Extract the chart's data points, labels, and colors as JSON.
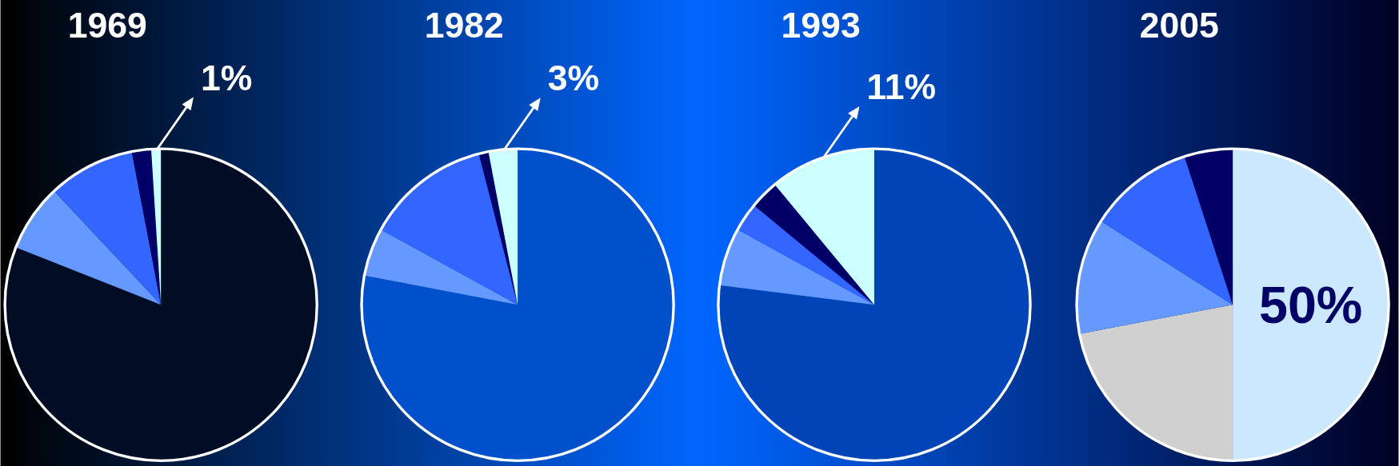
{
  "chart_data": [
    {
      "type": "pie",
      "title": "1969",
      "categories": [
        null,
        null,
        null,
        null,
        null
      ],
      "values": [
        81,
        7,
        9,
        2,
        1
      ],
      "colors": [
        "#000d24",
        "#6699ff",
        "#3366ff",
        "#000066",
        "#ccffff"
      ],
      "value_labels": [
        null,
        null,
        null,
        null,
        "1%"
      ]
    },
    {
      "type": "pie",
      "title": "1982",
      "categories": [
        null,
        null,
        null,
        null,
        null
      ],
      "values": [
        78,
        5,
        13,
        1,
        3
      ],
      "colors": [
        "#0050cc",
        "#6699ff",
        "#3366ff",
        "#000066",
        "#ccffff"
      ],
      "value_labels": [
        null,
        null,
        null,
        null,
        "3%"
      ]
    },
    {
      "type": "pie",
      "title": "1993",
      "categories": [
        null,
        null,
        null,
        null,
        null
      ],
      "values": [
        77,
        6,
        3,
        3,
        11
      ],
      "colors": [
        "#0044b8",
        "#6699ff",
        "#3366ff",
        "#000066",
        "#ccffff"
      ],
      "value_labels": [
        null,
        null,
        null,
        null,
        "11%"
      ]
    },
    {
      "type": "pie",
      "title": "2005",
      "categories": [
        null,
        null,
        null,
        null,
        null
      ],
      "values": [
        50,
        22,
        12,
        11,
        5
      ],
      "colors": [
        "#cce8ff",
        "#d0d0d0",
        "#6699ff",
        "#3366ff",
        "#000066"
      ],
      "value_labels": [
        "50%",
        null,
        null,
        null,
        null
      ]
    }
  ]
}
